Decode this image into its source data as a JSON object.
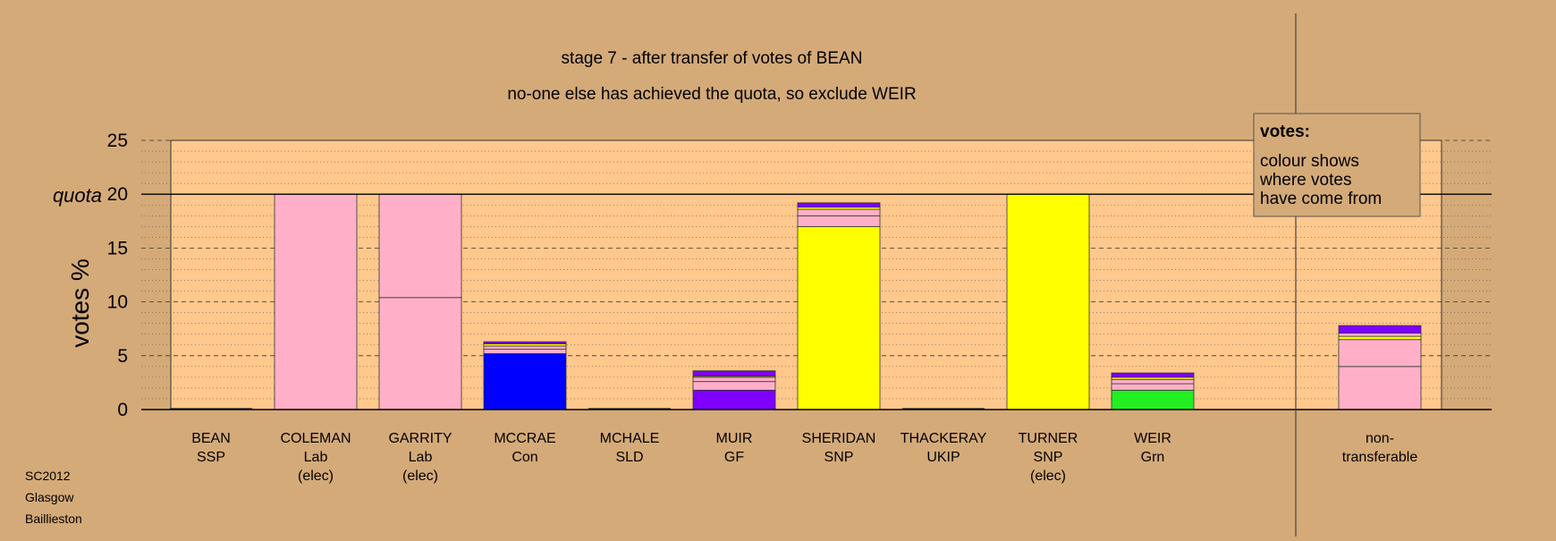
{
  "chart_data": {
    "type": "bar",
    "title": "stage 7 - after transfer of votes of BEAN",
    "subtitle": "no-one else has achieved the quota, so exclude WEIR",
    "ylabel": "votes %",
    "ylim": [
      0,
      25
    ],
    "yticks": [
      0,
      5,
      10,
      15,
      20,
      25
    ],
    "quota": 20,
    "quota_label": "quota",
    "grid": true,
    "legend": {
      "position": "top-right",
      "heading": "votes:",
      "lines": [
        "colour shows",
        "where votes",
        "have come from"
      ]
    },
    "candidates": [
      {
        "name": "BEAN",
        "party": "SSP",
        "status": "",
        "segments": []
      },
      {
        "name": "COLEMAN",
        "party": "Lab",
        "status": "(elec)",
        "segments": [
          {
            "value": 20.0,
            "color": "#ffb0c8"
          }
        ]
      },
      {
        "name": "GARRITY",
        "party": "Lab",
        "status": "(elec)",
        "segments": [
          {
            "value": 10.4,
            "color": "#ffb0c8"
          },
          {
            "value": 9.6,
            "color": "#ffb0c8"
          }
        ]
      },
      {
        "name": "MCCRAE",
        "party": "Con",
        "status": "",
        "segments": [
          {
            "value": 5.2,
            "color": "#0000ff"
          },
          {
            "value": 0.4,
            "color": "#ffb0c8"
          },
          {
            "value": 0.3,
            "color": "#ffb0c8"
          },
          {
            "value": 0.2,
            "color": "#ffff00"
          },
          {
            "value": 0.2,
            "color": "#8000ff"
          }
        ]
      },
      {
        "name": "MCHALE",
        "party": "SLD",
        "status": "",
        "segments": []
      },
      {
        "name": "MUIR",
        "party": "GF",
        "status": "",
        "segments": [
          {
            "value": 1.8,
            "color": "#8000ff"
          },
          {
            "value": 0.8,
            "color": "#ffb0c8"
          },
          {
            "value": 0.4,
            "color": "#ffb0c8"
          },
          {
            "value": 0.1,
            "color": "#ffff00"
          },
          {
            "value": 0.5,
            "color": "#8000ff"
          }
        ]
      },
      {
        "name": "SHERIDAN",
        "party": "SNP",
        "status": "",
        "segments": [
          {
            "value": 17.0,
            "color": "#ffff00"
          },
          {
            "value": 1.0,
            "color": "#ffb0c8"
          },
          {
            "value": 0.6,
            "color": "#ffb0c8"
          },
          {
            "value": 0.2,
            "color": "#ffff00"
          },
          {
            "value": 0.4,
            "color": "#8000ff"
          }
        ]
      },
      {
        "name": "THACKERAY",
        "party": "UKIP",
        "status": "",
        "segments": []
      },
      {
        "name": "TURNER",
        "party": "SNP",
        "status": "(elec)",
        "segments": [
          {
            "value": 20.0,
            "color": "#ffff00"
          }
        ]
      },
      {
        "name": "WEIR",
        "party": "Grn",
        "status": "",
        "segments": [
          {
            "value": 1.8,
            "color": "#22ee22"
          },
          {
            "value": 0.6,
            "color": "#ffb0c8"
          },
          {
            "value": 0.4,
            "color": "#ffb0c8"
          },
          {
            "value": 0.2,
            "color": "#ffff00"
          },
          {
            "value": 0.4,
            "color": "#8000ff"
          }
        ]
      }
    ],
    "nontransferable": {
      "label": [
        "non-",
        "transferable"
      ],
      "segments": [
        {
          "value": 4.0,
          "color": "#ffb0c8"
        },
        {
          "value": 2.5,
          "color": "#ffb0c8"
        },
        {
          "value": 0.3,
          "color": "#ffff00"
        },
        {
          "value": 0.3,
          "color": "#ffb0c8"
        },
        {
          "value": 0.7,
          "color": "#8000ff"
        }
      ]
    },
    "colors": {
      "background": "#d4aa78",
      "plot_area": "#ffc88c",
      "legend_bg": "#d4aa78"
    }
  },
  "footer": {
    "line1": "SC2012",
    "line2": "Glasgow",
    "line3": "Baillieston"
  }
}
